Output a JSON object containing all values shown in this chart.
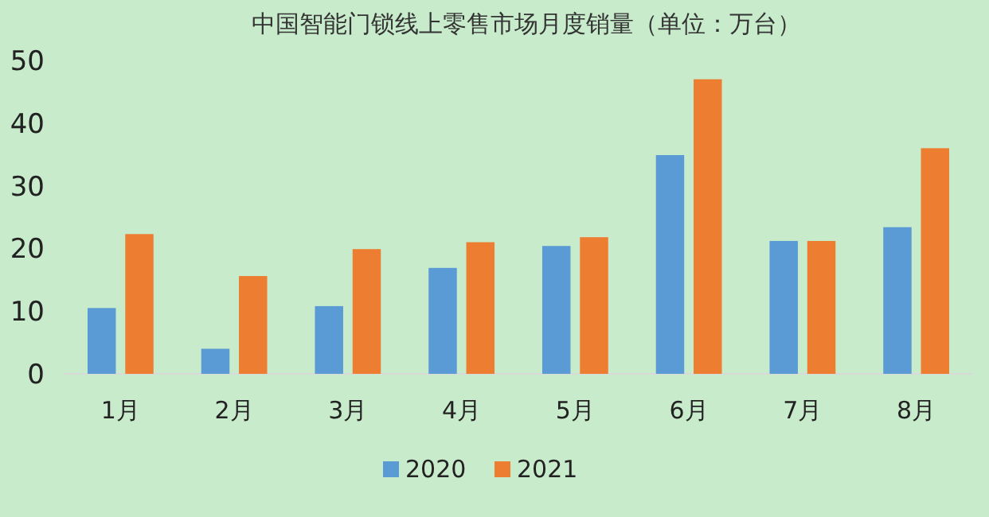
{
  "chart_data": {
    "type": "bar",
    "title": "中国智能门锁线上零售市场月度销量（单位：万台）",
    "categories": [
      "1月",
      "2月",
      "3月",
      "4月",
      "5月",
      "6月",
      "7月",
      "8月"
    ],
    "series": [
      {
        "name": "2020",
        "color": "#5b9bd5",
        "values": [
          10.5,
          4.0,
          10.8,
          16.9,
          20.4,
          34.9,
          21.2,
          23.4
        ]
      },
      {
        "name": "2021",
        "color": "#ed7d31",
        "values": [
          22.3,
          15.6,
          19.9,
          21.0,
          21.8,
          47.0,
          21.2,
          36.0
        ]
      }
    ],
    "ylim": [
      0,
      50
    ],
    "yticks": [
      0,
      10,
      20,
      30,
      40,
      50
    ],
    "grid": false,
    "legend": "bottom"
  }
}
